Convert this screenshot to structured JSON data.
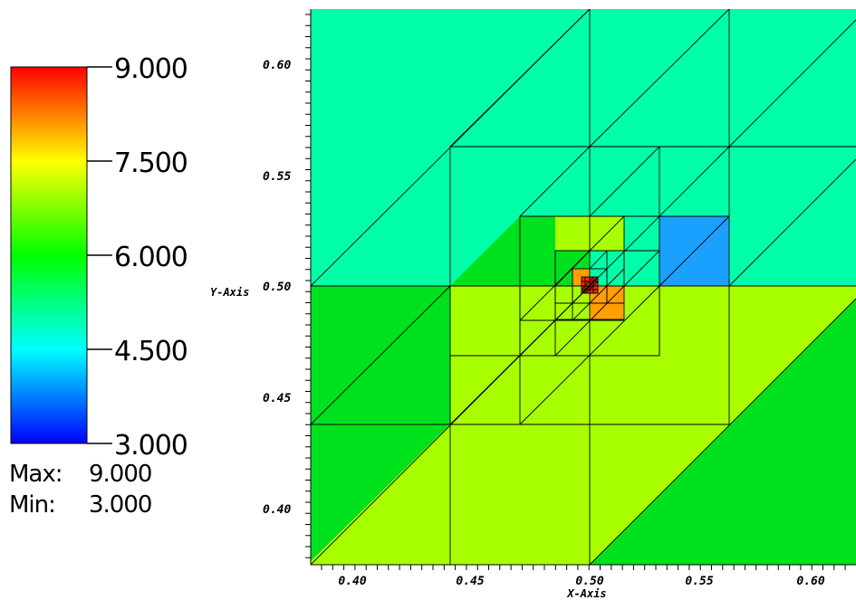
{
  "colors": {
    "seafoam": "#00ffa8",
    "blue": "#1aa0ff",
    "green": "#00e11e",
    "yellow_green": "#a8ff00",
    "orange": "#ffa000",
    "red": "#ff2a00",
    "mesh_line": "#000000"
  },
  "legend": {
    "ticks": [
      "9.000",
      "7.500",
      "6.000",
      "4.500",
      "3.000"
    ],
    "max_label": "Max:",
    "max_value": "9.000",
    "min_label": "Min:",
    "min_value": "3.000",
    "colormap": "rainbow (blue-cyan-green-yellow-red)"
  },
  "chart_data": {
    "type": "heatmap",
    "description_kind": "adaptive triangular mesh with piecewise-constant cell values",
    "xlabel": "X-Axis",
    "ylabel": "Y-Axis",
    "xlim": [
      0.375,
      0.62
    ],
    "ylim": [
      0.375,
      0.625
    ],
    "xticks": [
      "0.40",
      "0.45",
      "0.50",
      "0.55",
      "0.60"
    ],
    "yticks": [
      "0.40",
      "0.45",
      "0.50",
      "0.55",
      "0.60"
    ],
    "value_range": [
      3.0,
      9.0
    ],
    "grid": false,
    "regions": [
      {
        "name": "upper-band",
        "value": 5,
        "color": "seafoam"
      },
      {
        "name": "lower-left",
        "value": 6,
        "color": "green"
      },
      {
        "name": "lower-center",
        "value": 7,
        "color": "yellow_green"
      },
      {
        "name": "lower-right-triangle",
        "value": 6,
        "color": "green"
      },
      {
        "name": "mid-block",
        "value": 6,
        "color": "green"
      },
      {
        "name": "blue-square",
        "value": 4,
        "color": "blue"
      },
      {
        "name": "orange-refinement",
        "value": 8,
        "color": "orange"
      },
      {
        "name": "center-red",
        "value": 9,
        "color": "red"
      }
    ]
  }
}
